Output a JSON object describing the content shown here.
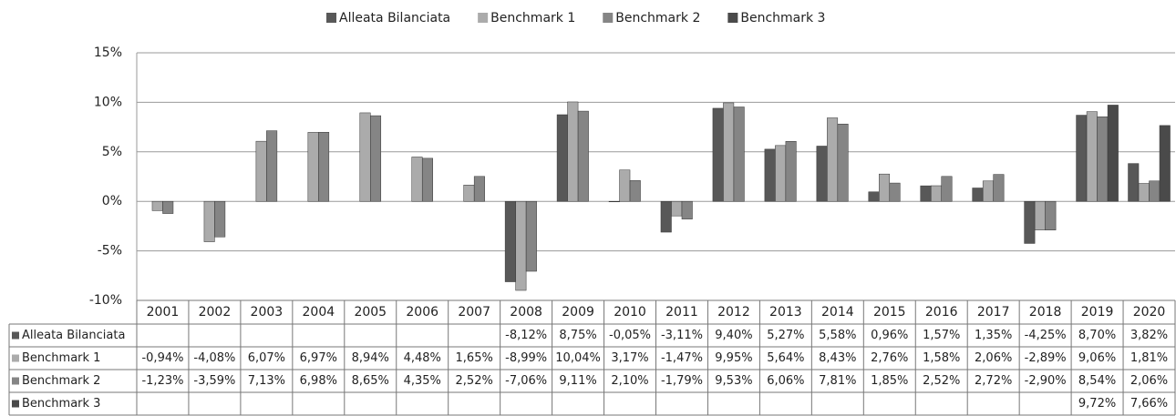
{
  "chart_data": {
    "type": "bar",
    "categories": [
      "2001",
      "2002",
      "2003",
      "2004",
      "2005",
      "2006",
      "2007",
      "2008",
      "2009",
      "2010",
      "2011",
      "2012",
      "2013",
      "2014",
      "2015",
      "2016",
      "2017",
      "2018",
      "2019",
      "2020"
    ],
    "series": [
      {
        "name": "Alleata Bilanciata",
        "color": "#585858",
        "values": [
          null,
          null,
          null,
          null,
          null,
          null,
          null,
          -8.12,
          8.75,
          -0.05,
          -3.11,
          9.4,
          5.27,
          5.58,
          0.96,
          1.57,
          1.35,
          -4.25,
          8.7,
          3.82
        ],
        "value_labels": [
          null,
          null,
          null,
          null,
          null,
          null,
          null,
          "-8,12%",
          "8,75%",
          "-0,05%",
          "-3,11%",
          "9,40%",
          "5,27%",
          "5,58%",
          "0,96%",
          "1,57%",
          "1,35%",
          "-4,25%",
          "8,70%",
          "3,82%"
        ]
      },
      {
        "name": "Benchmark 1",
        "color": "#ababab",
        "values": [
          -0.94,
          -4.08,
          6.07,
          6.97,
          8.94,
          4.48,
          1.65,
          -8.99,
          10.04,
          3.17,
          -1.47,
          9.95,
          5.64,
          8.43,
          2.76,
          1.58,
          2.06,
          -2.89,
          9.06,
          1.81
        ],
        "value_labels": [
          "-0,94%",
          "-4,08%",
          "6,07%",
          "6,97%",
          "8,94%",
          "4,48%",
          "1,65%",
          "-8,99%",
          "10,04%",
          "3,17%",
          "-1,47%",
          "9,95%",
          "5,64%",
          "8,43%",
          "2,76%",
          "1,58%",
          "2,06%",
          "-2,89%",
          "9,06%",
          "1,81%"
        ]
      },
      {
        "name": "Benchmark 2",
        "color": "#858585",
        "values": [
          -1.23,
          -3.59,
          7.13,
          6.98,
          8.65,
          4.35,
          2.52,
          -7.06,
          9.11,
          2.1,
          -1.79,
          9.53,
          6.06,
          7.81,
          1.85,
          2.52,
          2.72,
          -2.9,
          8.54,
          2.06
        ],
        "value_labels": [
          "-1,23%",
          "-3,59%",
          "7,13%",
          "6,98%",
          "8,65%",
          "4,35%",
          "2,52%",
          "-7,06%",
          "9,11%",
          "2,10%",
          "-1,79%",
          "9,53%",
          "6,06%",
          "7,81%",
          "1,85%",
          "2,52%",
          "2,72%",
          "-2,90%",
          "8,54%",
          "2,06%"
        ]
      },
      {
        "name": "Benchmark 3",
        "color": "#4a4a4a",
        "values": [
          null,
          null,
          null,
          null,
          null,
          null,
          null,
          null,
          null,
          null,
          null,
          null,
          null,
          null,
          null,
          null,
          null,
          null,
          9.72,
          7.66
        ],
        "value_labels": [
          null,
          null,
          null,
          null,
          null,
          null,
          null,
          null,
          null,
          null,
          null,
          null,
          null,
          null,
          null,
          null,
          null,
          null,
          "9,72%",
          "7,66%"
        ]
      }
    ],
    "ylim": [
      -10,
      15
    ],
    "yticks": [
      {
        "value": -10,
        "label": "-10%"
      },
      {
        "value": -5,
        "label": "-5%"
      },
      {
        "value": 0,
        "label": "0%"
      },
      {
        "value": 5,
        "label": "5%"
      },
      {
        "value": 10,
        "label": "10%"
      },
      {
        "value": 15,
        "label": "15%"
      }
    ],
    "grid": true
  }
}
